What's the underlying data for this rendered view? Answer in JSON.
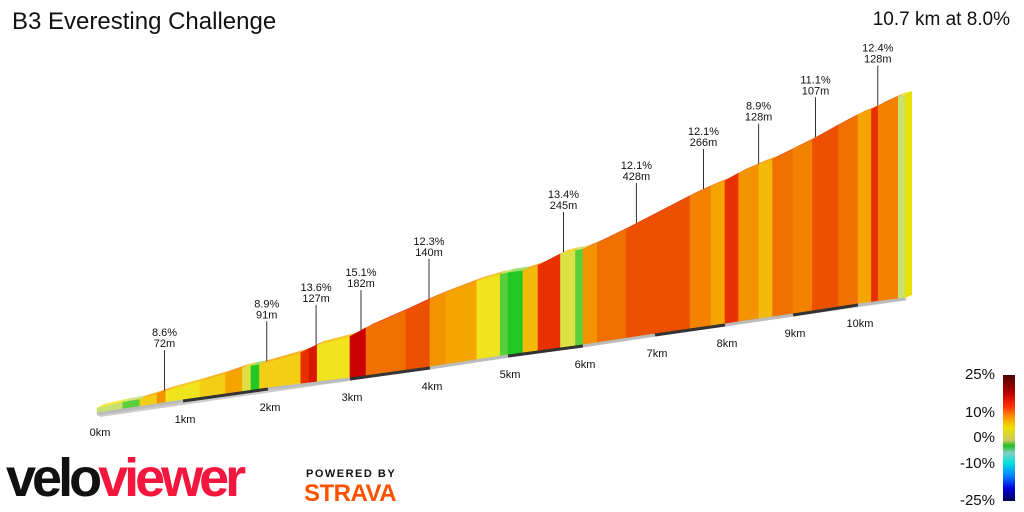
{
  "header": {
    "title": "B3 Everesting Challenge",
    "summary": "10.7 km at 8.0%"
  },
  "chart_data": {
    "type": "area",
    "title": "B3 Everesting Challenge",
    "distance_km": 10.7,
    "average_gradient_pct": 8.0,
    "x_ticks": [
      "0km",
      "1km",
      "2km",
      "3km",
      "4km",
      "5km",
      "6km",
      "7km",
      "8km",
      "9km",
      "10km"
    ],
    "segments": [
      {
        "length_km": 0.3,
        "grade": 3
      },
      {
        "length_km": 0.2,
        "grade": 1
      },
      {
        "length_km": 0.2,
        "grade": 6
      },
      {
        "length_km": 0.1,
        "grade": 9
      },
      {
        "length_km": 0.4,
        "grade": 5
      },
      {
        "length_km": 0.3,
        "grade": 6
      },
      {
        "length_km": 0.2,
        "grade": 8
      },
      {
        "length_km": 0.1,
        "grade": 4
      },
      {
        "length_km": 0.1,
        "grade": 0
      },
      {
        "length_km": 0.5,
        "grade": 6
      },
      {
        "length_km": 0.1,
        "grade": 13
      },
      {
        "length_km": 0.1,
        "grade": 14
      },
      {
        "length_km": 0.4,
        "grade": 5
      },
      {
        "length_km": 0.2,
        "grade": 15
      },
      {
        "length_km": 0.5,
        "grade": 11
      },
      {
        "length_km": 0.3,
        "grade": 12
      },
      {
        "length_km": 0.2,
        "grade": 9
      },
      {
        "length_km": 0.4,
        "grade": 8
      },
      {
        "length_km": 0.3,
        "grade": 5
      },
      {
        "length_km": 0.1,
        "grade": 1
      },
      {
        "length_km": 0.2,
        "grade": 0
      },
      {
        "length_km": 0.2,
        "grade": 7
      },
      {
        "length_km": 0.3,
        "grade": 13
      },
      {
        "length_km": 0.2,
        "grade": 4
      },
      {
        "length_km": 0.1,
        "grade": 1
      },
      {
        "length_km": 0.2,
        "grade": 9
      },
      {
        "length_km": 0.4,
        "grade": 11
      },
      {
        "length_km": 0.6,
        "grade": 12
      },
      {
        "length_km": 0.3,
        "grade": 12
      },
      {
        "length_km": 0.3,
        "grade": 10
      },
      {
        "length_km": 0.2,
        "grade": 8
      },
      {
        "length_km": 0.2,
        "grade": 13
      },
      {
        "length_km": 0.3,
        "grade": 9
      },
      {
        "length_km": 0.2,
        "grade": 7
      },
      {
        "length_km": 0.3,
        "grade": 11
      },
      {
        "length_km": 0.3,
        "grade": 10
      },
      {
        "length_km": 0.4,
        "grade": 12
      },
      {
        "length_km": 0.3,
        "grade": 11
      },
      {
        "length_km": 0.2,
        "grade": 8
      },
      {
        "length_km": 0.1,
        "grade": 13
      },
      {
        "length_km": 0.3,
        "grade": 10
      },
      {
        "length_km": 0.1,
        "grade": 3
      }
    ],
    "annotations": [
      {
        "km": 0.75,
        "grade": "8.6%",
        "length": "72m"
      },
      {
        "km": 1.95,
        "grade": "8.9%",
        "length": "91m"
      },
      {
        "km": 2.55,
        "grade": "13.6%",
        "length": "127m"
      },
      {
        "km": 3.1,
        "grade": "15.1%",
        "length": "182m"
      },
      {
        "km": 3.95,
        "grade": "12.3%",
        "length": "140m"
      },
      {
        "km": 5.7,
        "grade": "13.4%",
        "length": "245m"
      },
      {
        "km": 6.7,
        "grade": "12.1%",
        "length": "428m"
      },
      {
        "km": 7.65,
        "grade": "12.1%",
        "length": "266m"
      },
      {
        "km": 8.45,
        "grade": "8.9%",
        "length": "128m"
      },
      {
        "km": 9.3,
        "grade": "11.1%",
        "length": "107m"
      },
      {
        "km": 10.25,
        "grade": "12.4%",
        "length": "128m"
      }
    ],
    "legend": {
      "labels": [
        "25%",
        "10%",
        "0%",
        "-10%",
        "-25%"
      ],
      "type": "gradient color scale"
    }
  },
  "branding": {
    "logo_velo": "velo",
    "logo_viewer": "viewer",
    "powered_by": "POWERED BY",
    "strava": "STRAVA"
  }
}
